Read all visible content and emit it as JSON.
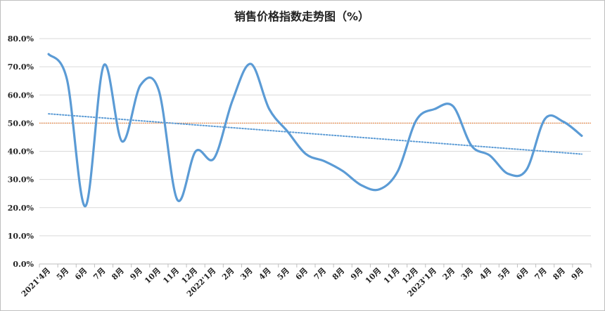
{
  "chart_data": {
    "type": "line",
    "title": "销售价格指数走势图（%）",
    "y_tick_labels": [
      "0.0%",
      "10.0%",
      "20.0%",
      "30.0%",
      "40.0%",
      "50.0%",
      "60.0%",
      "70.0%",
      "80.0%"
    ],
    "ylim": [
      0,
      80
    ],
    "categories": [
      "2021'4月",
      "5月",
      "6月",
      "7月",
      "8月",
      "9月",
      "10月",
      "11月",
      "12月",
      "2022'1月",
      "2月",
      "3月",
      "4月",
      "5月",
      "6月",
      "7月",
      "8月",
      "9月",
      "10月",
      "11月",
      "12月",
      "2023'1月",
      "2月",
      "3月",
      "4月",
      "5月",
      "6月",
      "7月",
      "8月",
      "9月"
    ],
    "series": [
      {
        "values": [
          74.5,
          65.5,
          20.5,
          70.5,
          43.5,
          63.5,
          61.5,
          22.8,
          40.0,
          37.5,
          58.0,
          71.0,
          55.0,
          47.0,
          39.0,
          36.5,
          33.0,
          28.0,
          26.5,
          33.0,
          51.0,
          55.0,
          56.0,
          42.0,
          38.5,
          32.0,
          33.5,
          51.5,
          50.5,
          45.5
        ],
        "color": "#5b9bd5"
      }
    ],
    "reference_line": {
      "value": 50.0,
      "color": "#ed7d31"
    },
    "trendline": {
      "start": 53.3,
      "end": 39.0,
      "color": "#5b9bd5"
    },
    "grid": true,
    "legend": "none"
  }
}
